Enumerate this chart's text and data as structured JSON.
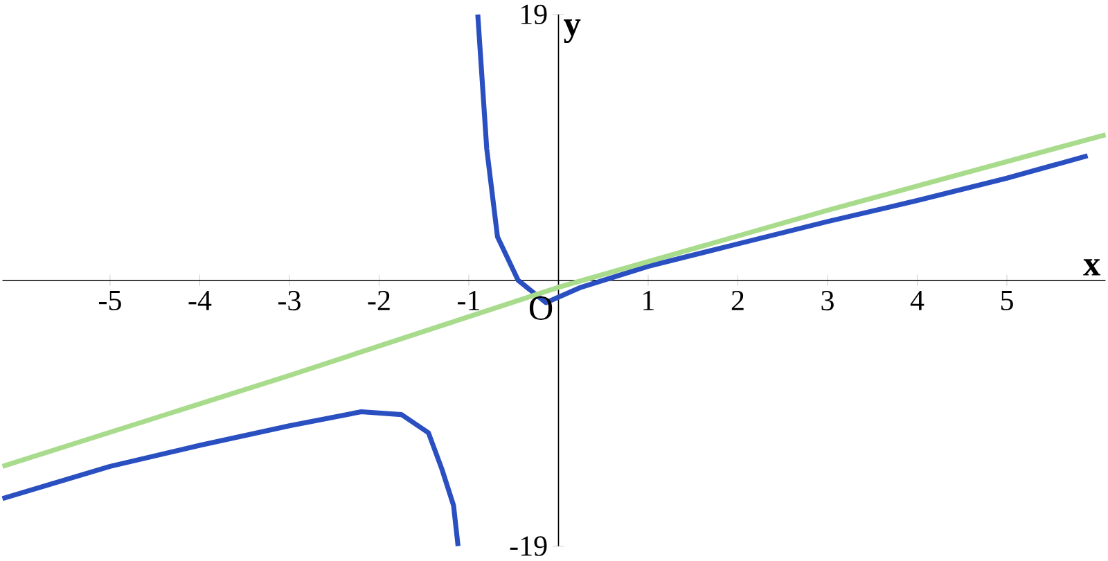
{
  "chart_data": {
    "type": "line",
    "xlabel": "x",
    "ylabel": "y",
    "annotations": [
      "O"
    ],
    "xlim": [
      -6.2,
      6.1
    ],
    "ylim": [
      -19,
      19
    ],
    "xticks": [
      -5,
      -4,
      -3,
      -2,
      -1,
      1,
      2,
      3,
      4,
      5
    ],
    "yticks": [
      -19,
      19
    ],
    "series": [
      {
        "color": "#2a4fc0",
        "x": [
          -6.2,
          -5,
          -4,
          -3,
          -2.2,
          -1.75,
          -1.45,
          -1.3,
          -1.17,
          -1.12,
          null,
          -0.9,
          -0.8,
          -0.68,
          -0.45,
          -0.14,
          0.25,
          1,
          2,
          3,
          4,
          5,
          5.9
        ],
        "values": [
          -15.6,
          -13.3,
          -11.8,
          -10.4,
          -9.4,
          -9.6,
          -10.9,
          -13.5,
          -16.1,
          -19,
          null,
          19,
          9.4,
          3.1,
          0,
          -1.6,
          -0.5,
          1,
          2.6,
          4.2,
          5.7,
          7.3,
          8.9
        ]
      },
      {
        "color": "#a8dc8c",
        "x": [
          -6.2,
          -3,
          0,
          3,
          6.1
        ],
        "values": [
          -13.3,
          -6.8,
          -0.5,
          5,
          10.4
        ]
      }
    ]
  }
}
